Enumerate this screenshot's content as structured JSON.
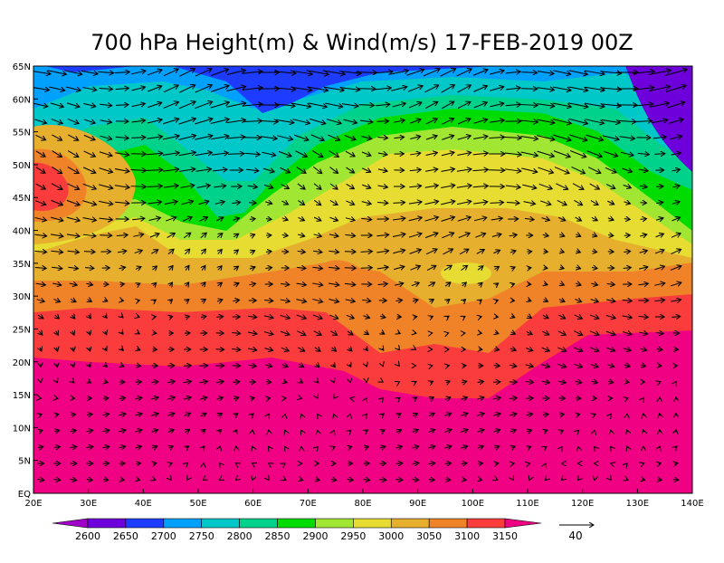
{
  "title": "700 hPa Height(m) & Wind(m/s) 17-FEB-2019 00Z",
  "lat_labels": [
    "EQ",
    "5N",
    "10N",
    "15N",
    "20N",
    "25N",
    "30N",
    "35N",
    "40N",
    "45N",
    "50N",
    "55N",
    "60N",
    "65N"
  ],
  "lon_labels": [
    "20E",
    "30E",
    "40E",
    "50E",
    "60E",
    "70E",
    "80E",
    "90E",
    "100E",
    "110E",
    "120E",
    "130E",
    "140E"
  ],
  "colorbar": {
    "levels": [
      2600,
      2650,
      2700,
      2750,
      2800,
      2850,
      2900,
      2950,
      3000,
      3050,
      3100,
      3150
    ],
    "colors": [
      "#a000c8",
      "#6e00dc",
      "#1e3cff",
      "#00a0ff",
      "#00c8c8",
      "#00d28c",
      "#00dc00",
      "#a0e632",
      "#e6dc32",
      "#e6af2d",
      "#f08228",
      "#fa3c3c",
      "#f00082"
    ]
  },
  "reference_vector": {
    "speed": 40
  }
}
